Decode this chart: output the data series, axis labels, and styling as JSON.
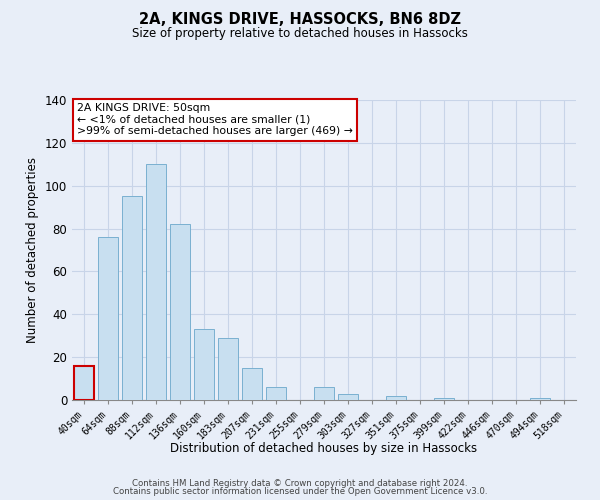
{
  "title": "2A, KINGS DRIVE, HASSOCKS, BN6 8DZ",
  "subtitle": "Size of property relative to detached houses in Hassocks",
  "xlabel": "Distribution of detached houses by size in Hassocks",
  "ylabel": "Number of detached properties",
  "bar_color": "#c8dff0",
  "bar_edge_color": "#7ab0d0",
  "categories": [
    "40sqm",
    "64sqm",
    "88sqm",
    "112sqm",
    "136sqm",
    "160sqm",
    "183sqm",
    "207sqm",
    "231sqm",
    "255sqm",
    "279sqm",
    "303sqm",
    "327sqm",
    "351sqm",
    "375sqm",
    "399sqm",
    "422sqm",
    "446sqm",
    "470sqm",
    "494sqm",
    "518sqm"
  ],
  "values": [
    16,
    76,
    95,
    110,
    82,
    33,
    29,
    15,
    6,
    0,
    6,
    3,
    0,
    2,
    0,
    1,
    0,
    0,
    0,
    1,
    0
  ],
  "ylim": [
    0,
    140
  ],
  "yticks": [
    0,
    20,
    40,
    60,
    80,
    100,
    120,
    140
  ],
  "annotation_box_text": [
    "2A KINGS DRIVE: 50sqm",
    "← <1% of detached houses are smaller (1)",
    ">99% of semi-detached houses are larger (469) →"
  ],
  "annotation_box_color": "#ffffff",
  "annotation_box_edge_color": "#cc0000",
  "highlighted_bar_index": 0,
  "footer_line1": "Contains HM Land Registry data © Crown copyright and database right 2024.",
  "footer_line2": "Contains public sector information licensed under the Open Government Licence v3.0.",
  "background_color": "#e8eef8",
  "grid_color": "#c8d4e8",
  "title_fontsize": 10.5,
  "subtitle_fontsize": 8.5
}
